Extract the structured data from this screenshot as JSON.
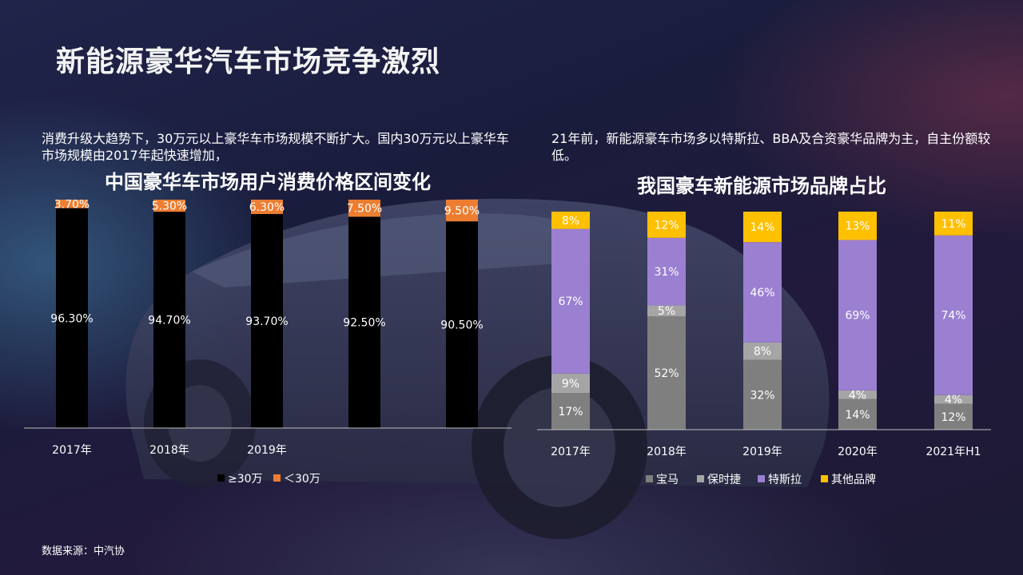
{
  "page": {
    "title": "新能源豪华汽车市场竞争激烈",
    "left_text": "消费升级大趋势下，30万元以上豪华车市场规模不断扩大。国内30万元以上豪华车市场规模由2017年起快速增加，",
    "right_text": "21年前，新能源豪车市场多以特斯拉、BBA及合资豪华品牌为主，自主份额较低。",
    "source": "数据来源：中汽协"
  },
  "colors": {
    "black_bar": "#000000",
    "orange": "#ed7d31",
    "gray_dark": "#7f7f7f",
    "gray_light": "#a5a5a5",
    "purple": "#9b7fd1",
    "yellow": "#ffc000"
  },
  "chart_data": [
    {
      "type": "bar",
      "stacked": true,
      "title": "中国豪华车市场用户消费价格区间变化",
      "categories": [
        "2017年",
        "2018年",
        "2019年",
        "",
        ""
      ],
      "series": [
        {
          "name": "≥30万",
          "values": [
            96.3,
            94.7,
            93.7,
            92.5,
            90.5
          ],
          "labels": [
            "96.30%",
            "94.70%",
            "93.70%",
            "92.50%",
            "90.50%"
          ]
        },
        {
          "name": "＜30万",
          "values": [
            3.7,
            5.3,
            6.3,
            7.5,
            9.5
          ],
          "labels": [
            "3.70%",
            "5.30%",
            "6.30%",
            "7.50%",
            "9.50%"
          ]
        }
      ],
      "ylim": [
        0,
        100
      ],
      "legend": "bottom"
    },
    {
      "type": "bar",
      "stacked": true,
      "title": "我国豪车新能源市场品牌占比",
      "categories": [
        "2017年",
        "2018年",
        "2019年",
        "2020年",
        "2021年H1"
      ],
      "series": [
        {
          "name": "宝马",
          "values": [
            17,
            52,
            32,
            14,
            12
          ],
          "labels": [
            "17%",
            "52%",
            "32%",
            "14%",
            "12%"
          ]
        },
        {
          "name": "保时捷",
          "values": [
            9,
            5,
            8,
            4,
            4
          ],
          "labels": [
            "9%",
            "5%",
            "8%",
            "4%",
            "4%"
          ]
        },
        {
          "name": "特斯拉",
          "values": [
            67,
            31,
            46,
            69,
            74
          ],
          "labels": [
            "67%",
            "31%",
            "46%",
            "69%",
            "74%"
          ]
        },
        {
          "name": "其他品牌",
          "values": [
            8,
            12,
            14,
            13,
            11
          ],
          "labels": [
            "8%",
            "12%",
            "14%",
            "13%",
            "11%"
          ]
        }
      ],
      "ylim": [
        0,
        100
      ],
      "legend": "bottom"
    }
  ]
}
